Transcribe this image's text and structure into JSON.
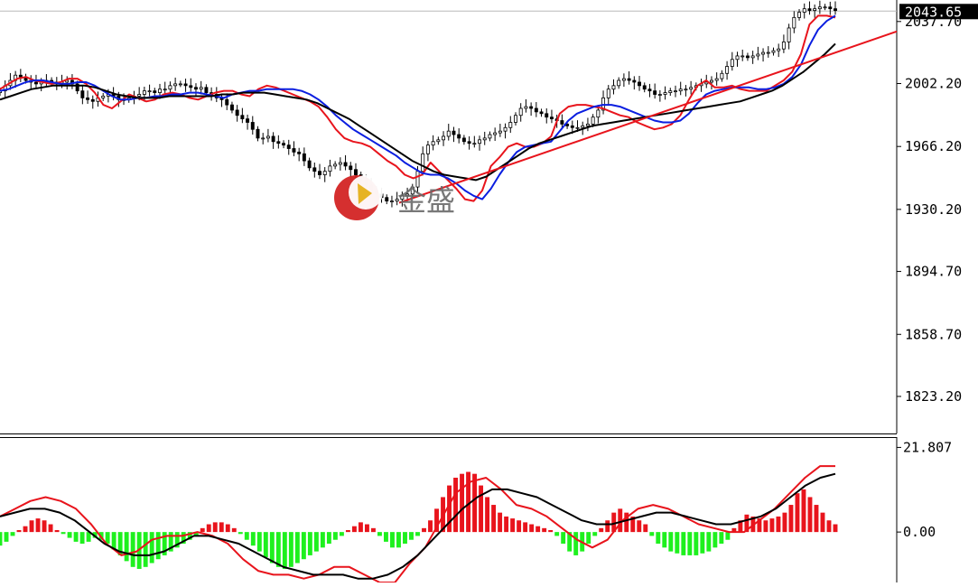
{
  "chart_data": [
    {
      "type": "candlestick",
      "panel": "price",
      "y_ticks": [
        "2037.70",
        "2002.20",
        "1966.20",
        "1930.20",
        "1894.70",
        "1858.70",
        "1823.20"
      ],
      "y_tick_values": [
        2037.7,
        2002.2,
        1966.2,
        1930.2,
        1894.7,
        1858.7,
        1823.2
      ],
      "ylim": [
        1802,
        2050
      ],
      "current_price_label": "2043.65",
      "current_price": 2043.65,
      "grid": false,
      "watermark": "金盛",
      "series": [
        {
          "name": "",
          "style": "candles",
          "color": "#000000",
          "close": [
            1998,
            2001,
            2004,
            2007,
            2006,
            2004,
            2003,
            2002,
            2003,
            2004,
            2003,
            2002,
            2003,
            2004,
            2002,
            1998,
            1994,
            1993,
            1992,
            1994,
            1995,
            1996,
            1995,
            1993,
            1993,
            1994,
            1995,
            1996,
            1998,
            1998,
            1997,
            1999,
            1999,
            2001,
            2002,
            2002,
            2001,
            2000,
            1999,
            2000,
            1997,
            1996,
            1994,
            1993,
            1990,
            1987,
            1984,
            1982,
            1980,
            1976,
            1971,
            1971,
            1972,
            1969,
            1968,
            1967,
            1965,
            1963,
            1962,
            1958,
            1954,
            1952,
            1950,
            1952,
            1955,
            1956,
            1957,
            1955,
            1953,
            1950,
            1947,
            1944,
            1941,
            1939,
            1937,
            1935,
            1935,
            1936,
            1938,
            1939,
            1943,
            1952,
            1962,
            1967,
            1969,
            1970,
            1972,
            1975,
            1973,
            1971,
            1969,
            1968,
            1968,
            1970,
            1971,
            1973,
            1974,
            1975,
            1977,
            1980,
            1984,
            1988,
            1989,
            1988,
            1986,
            1985,
            1983,
            1982,
            1981,
            1979,
            1978,
            1977,
            1977,
            1978,
            1979,
            1983,
            1987,
            1994,
            1999,
            2001,
            2004,
            2005,
            2004,
            2003,
            2001,
            1999,
            1998,
            1996,
            1996,
            1997,
            1998,
            1998,
            1999,
            1999,
            2000,
            2001,
            2002,
            2003,
            2004,
            2005,
            2008,
            2012,
            2016,
            2018,
            2018,
            2017,
            2018,
            2019,
            2020,
            2020,
            2021,
            2022,
            2026,
            2034,
            2040,
            2043,
            2045,
            2044,
            2045,
            2046,
            2046,
            2045,
            2044
          ]
        },
        {
          "name": "",
          "style": "line",
          "color": "#e8141c",
          "values": [
            1999,
            2002,
            2005,
            2006,
            2004,
            2003,
            2002,
            2003,
            2005,
            2005,
            2002,
            1997,
            1990,
            1988,
            1992,
            1996,
            1994,
            1992,
            1993,
            1996,
            1997,
            1996,
            1994,
            1993,
            1995,
            1997,
            1998,
            1998,
            1996,
            1995,
            1999,
            2001,
            2000,
            1998,
            1996,
            1994,
            1992,
            1989,
            1983,
            1976,
            1971,
            1969,
            1968,
            1966,
            1962,
            1958,
            1955,
            1950,
            1948,
            1950,
            1957,
            1952,
            1947,
            1942,
            1936,
            1935,
            1941,
            1955,
            1960,
            1966,
            1968,
            1966,
            1966,
            1968,
            1972,
            1985,
            1989,
            1990,
            1990,
            1989,
            1988,
            1986,
            1984,
            1983,
            1980,
            1978,
            1976,
            1977,
            1979,
            1984,
            1993,
            2001,
            2004,
            2000,
            2000,
            2001,
            1999,
            1998,
            1998,
            1998,
            2001,
            2004,
            2009,
            2019,
            2036,
            2041,
            2041,
            2040
          ]
        },
        {
          "name": "",
          "style": "line",
          "color": "#0a1ee0",
          "values": [
            1998,
            1999,
            2001,
            2003,
            2004,
            2004,
            2003,
            2002,
            2002,
            2003,
            2003,
            2001,
            1998,
            1995,
            1993,
            1993,
            1994,
            1994,
            1995,
            1995,
            1996,
            1996,
            1997,
            1997,
            1996,
            1995,
            1994,
            1996,
            1997,
            1998,
            1998,
            1999,
            1999,
            1999,
            1999,
            1998,
            1996,
            1993,
            1989,
            1984,
            1980,
            1976,
            1973,
            1970,
            1967,
            1964,
            1961,
            1957,
            1954,
            1951,
            1950,
            1950,
            1948,
            1945,
            1941,
            1938,
            1936,
            1942,
            1950,
            1957,
            1963,
            1966,
            1967,
            1968,
            1969,
            1975,
            1981,
            1985,
            1987,
            1989,
            1990,
            1990,
            1989,
            1987,
            1985,
            1983,
            1981,
            1980,
            1980,
            1981,
            1985,
            1991,
            1996,
            1998,
            1999,
            2000,
            2000,
            2000,
            1999,
            1999,
            2000,
            2002,
            2006,
            2013,
            2024,
            2033,
            2038,
            2041
          ]
        },
        {
          "name": "",
          "style": "line",
          "color": "#000000",
          "values": [
            1993,
            1995,
            1997,
            1999,
            2000,
            2001,
            2001,
            2001,
            2001,
            2000,
            1998,
            1996,
            1995,
            1994,
            1994,
            1994,
            1995,
            1995,
            1995,
            1995,
            1995,
            1996,
            1996,
            1997,
            1997,
            1997,
            1996,
            1995,
            1994,
            1993,
            1991,
            1988,
            1985,
            1982,
            1978,
            1974,
            1970,
            1966,
            1962,
            1958,
            1955,
            1952,
            1950,
            1949,
            1948,
            1947,
            1949,
            1953,
            1957,
            1961,
            1965,
            1968,
            1970,
            1972,
            1974,
            1976,
            1978,
            1979,
            1980,
            1981,
            1982,
            1983,
            1984,
            1985,
            1986,
            1987,
            1988,
            1989,
            1990,
            1991,
            1992,
            1994,
            1996,
            1998,
            2001,
            2005,
            2009,
            2014,
            2019,
            2025
          ]
        },
        {
          "name": "",
          "style": "line",
          "color": "#e8141c",
          "values": [
            1934,
            2032
          ]
        }
      ]
    },
    {
      "type": "bar",
      "panel": "macd",
      "y_ticks": [
        "21.807",
        "0.00"
      ],
      "y_tick_values": [
        21.807,
        0
      ],
      "ylim": [
        -13,
        24
      ],
      "series": [
        {
          "name": "",
          "style": "histogram",
          "color_positive": "#e8141c",
          "color_negative": "#1ef01e",
          "values": [
            -3.5,
            -2.5,
            -1,
            0.5,
            1.5,
            3,
            3.5,
            3,
            2,
            0.5,
            -0.5,
            -1.5,
            -2.5,
            -3,
            -2.5,
            -1.5,
            -2,
            -3,
            -4.5,
            -6,
            -7.5,
            -9,
            -9.5,
            -9,
            -8,
            -7,
            -6,
            -5,
            -4,
            -3,
            -2,
            -1,
            1,
            2,
            2.5,
            2.5,
            2,
            1,
            -0.5,
            -2,
            -3.5,
            -5,
            -6.5,
            -8,
            -9,
            -9.5,
            -9,
            -8,
            -7,
            -6,
            -5,
            -4,
            -3,
            -2,
            -1,
            0.5,
            1.5,
            2.5,
            2,
            1,
            -1,
            -2.5,
            -4,
            -4,
            -3,
            -2,
            -1,
            1,
            3,
            6,
            9,
            12,
            14,
            15,
            15.5,
            15,
            12,
            9,
            7,
            5,
            4,
            3.5,
            3,
            2.5,
            2,
            1.5,
            1,
            0.5,
            -1,
            -3,
            -5,
            -6,
            -5,
            -3,
            -1,
            1,
            3,
            5,
            6,
            5,
            4,
            3,
            2,
            -1,
            -3,
            -4,
            -5,
            -5.5,
            -6,
            -6,
            -6,
            -5.5,
            -5,
            -4,
            -3,
            -2,
            1,
            3,
            4.5,
            4,
            3.5,
            3,
            3.5,
            4,
            5,
            7,
            10,
            11,
            9,
            7,
            5,
            3,
            2
          ]
        },
        {
          "name": "",
          "style": "line",
          "color": "#e8141c",
          "values": [
            4,
            6,
            8,
            9,
            8,
            6,
            2,
            -3,
            -6,
            -5,
            -2,
            -1,
            -1,
            0,
            -1,
            -3,
            -7,
            -10,
            -11,
            -11,
            -12,
            -11,
            -9,
            -9,
            -11,
            -13,
            -13,
            -8,
            -4,
            3,
            10,
            13,
            14,
            11,
            7,
            6,
            4,
            1,
            -2,
            -4,
            -2,
            3,
            6,
            7,
            6,
            4,
            2,
            1,
            0,
            0,
            3,
            6,
            10,
            14,
            17,
            17
          ]
        },
        {
          "name": "",
          "style": "line",
          "color": "#000000",
          "values": [
            4,
            5,
            6,
            6,
            5,
            3,
            0,
            -3,
            -5,
            -6,
            -6,
            -5,
            -3,
            -1,
            -1,
            -2,
            -3,
            -5,
            -7,
            -9,
            -10,
            -11,
            -11,
            -11,
            -12,
            -12,
            -11,
            -9,
            -6,
            -2,
            2,
            6,
            9,
            11,
            11,
            10,
            9,
            7,
            5,
            3,
            2,
            2,
            3,
            4,
            5,
            5,
            4,
            3,
            2,
            2,
            3,
            4,
            6,
            9,
            12,
            14,
            15
          ]
        }
      ]
    }
  ]
}
